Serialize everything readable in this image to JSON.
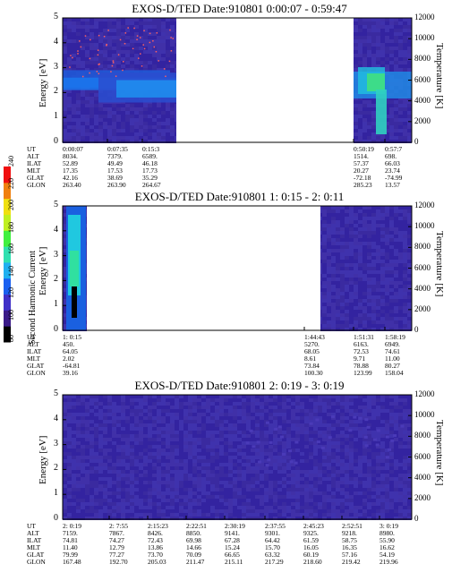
{
  "colorbar": {
    "label": "Second Harmonic Current",
    "ticks": [
      "80",
      "100",
      "120",
      "140",
      "160",
      "180",
      "200",
      "220",
      "240"
    ]
  },
  "colors": {
    "background_plot": "#3a2a9a",
    "gap": "#ffffff",
    "text": "#000000"
  },
  "chart_data": [
    {
      "type": "heatmap",
      "title": "EXOS-D/TED   Date:910801   0:00:07 - 0:59:47",
      "ylabel": "Energy [eV]",
      "ylabel_right": "Temperature [K]",
      "ylim": [
        0,
        5
      ],
      "ylim_right": [
        0,
        12000
      ],
      "yticks": [
        "0",
        "1",
        "2",
        "3",
        "4",
        "5"
      ],
      "yticks_right": [
        "0",
        "2000",
        "4000",
        "6000",
        "8000",
        "10000",
        "12000"
      ],
      "ephemeris": {
        "row_labels": [
          "UT",
          "ALT",
          "ILAT",
          "MLT",
          "GLAT",
          "GLON"
        ],
        "columns": [
          {
            "ut": "0:00:07",
            "alt": "8034.",
            "ilat": "52.89",
            "mlt": "17.35",
            "glat": "42.16",
            "glon": "263.40"
          },
          {
            "ut": "0:07:35",
            "alt": "7379.",
            "ilat": "49.49",
            "mlt": "17.53",
            "glat": "38.69",
            "glon": "263.90"
          },
          {
            "ut": "0:15:3",
            "alt": "6589.",
            "ilat": "46.18",
            "mlt": "17.73",
            "glat": "35.29",
            "glon": "264.67"
          },
          {
            "ut": "0:50:19",
            "alt": "1514.",
            "ilat": "57.37",
            "mlt": "20.27",
            "glat": "-72.18",
            "glon": "285.23"
          },
          {
            "ut": "0:57:7",
            "alt": "698.",
            "ilat": "66.03",
            "mlt": "23.74",
            "glat": "-74.99",
            "glon": "13.57"
          }
        ]
      }
    },
    {
      "type": "heatmap",
      "title": "EXOS-D/TED   Date:910801   1: 0:15 - 2: 0:11",
      "ylabel": "Energy [eV]",
      "ylabel_right": "Temperature [K]",
      "ylim": [
        0,
        5
      ],
      "ylim_right": [
        0,
        12000
      ],
      "yticks": [
        "0",
        "1",
        "2",
        "3",
        "4",
        "5"
      ],
      "yticks_right": [
        "0",
        "2000",
        "4000",
        "6000",
        "8000",
        "10000",
        "12000"
      ],
      "ephemeris": {
        "row_labels": [
          "UT",
          "ALT",
          "ILAT",
          "MLT",
          "GLAT",
          "GLON"
        ],
        "columns": [
          {
            "ut": "1: 0:15",
            "alt": "450.",
            "ilat": "64.05",
            "mlt": "2.02",
            "glat": "-64.81",
            "glon": "39.16"
          },
          {
            "ut": "1:44:43",
            "alt": "5270.",
            "ilat": "68.05",
            "mlt": "8.61",
            "glat": "73.84",
            "glon": "100.30"
          },
          {
            "ut": "1:51:31",
            "alt": "6163.",
            "ilat": "72.53",
            "mlt": "9.71",
            "glat": "78.88",
            "glon": "123.99"
          },
          {
            "ut": "1:58:19",
            "alt": "6949.",
            "ilat": "74.61",
            "mlt": "11.00",
            "glat": "80.27",
            "glon": "158.04"
          }
        ]
      }
    },
    {
      "type": "heatmap",
      "title": "EXOS-D/TED   Date:910801   2: 0:19 - 3: 0:19",
      "ylabel": "Energy [eV]",
      "ylabel_right": "Temperature [K]",
      "ylim": [
        0,
        5
      ],
      "ylim_right": [
        0,
        12000
      ],
      "yticks": [
        "0",
        "1",
        "2",
        "3",
        "4",
        "5"
      ],
      "yticks_right": [
        "0",
        "2000",
        "4000",
        "6000",
        "8000",
        "10000",
        "12000"
      ],
      "ephemeris": {
        "row_labels": [
          "UT",
          "ALT",
          "ILAT",
          "MLT",
          "GLAT",
          "GLON"
        ],
        "columns": [
          {
            "ut": "2: 0:19",
            "alt": "7159.",
            "ilat": "74.81",
            "mlt": "11.40",
            "glat": "79.99",
            "glon": "167.48"
          },
          {
            "ut": "2: 7:55",
            "alt": "7867.",
            "ilat": "74.27",
            "mlt": "12.79",
            "glat": "77.27",
            "glon": "192.70"
          },
          {
            "ut": "2:15:23",
            "alt": "8426.",
            "ilat": "72.43",
            "mlt": "13.86",
            "glat": "73.70",
            "glon": "205.03"
          },
          {
            "ut": "2:22:51",
            "alt": "8850.",
            "ilat": "69.98",
            "mlt": "14.66",
            "glat": "70.09",
            "glon": "211.47"
          },
          {
            "ut": "2:30:19",
            "alt": "9141.",
            "ilat": "67.28",
            "mlt": "15.24",
            "glat": "66.65",
            "glon": "215.11"
          },
          {
            "ut": "2:37:55",
            "alt": "9301.",
            "ilat": "64.42",
            "mlt": "15.70",
            "glat": "63.32",
            "glon": "217.29"
          },
          {
            "ut": "2:45:23",
            "alt": "9325.",
            "ilat": "61.59",
            "mlt": "16.05",
            "glat": "60.19",
            "glon": "218.60"
          },
          {
            "ut": "2:52:51",
            "alt": "9218.",
            "ilat": "58.75",
            "mlt": "16.35",
            "glat": "57.16",
            "glon": "219.42"
          },
          {
            "ut": "3: 0:19",
            "alt": "8980.",
            "ilat": "55.90",
            "mlt": "16.62",
            "glat": "54.19",
            "glon": "219.96"
          }
        ]
      }
    }
  ]
}
